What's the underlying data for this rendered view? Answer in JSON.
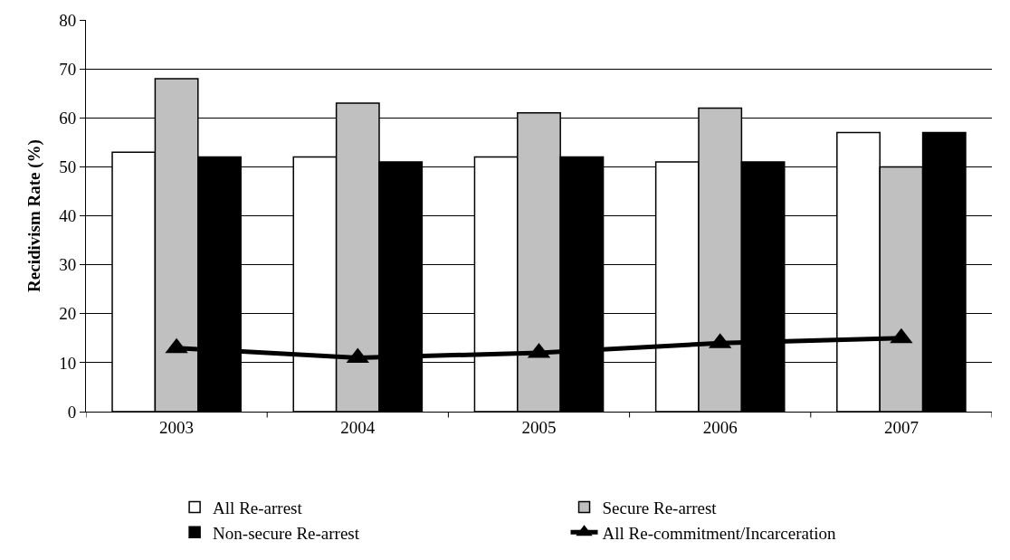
{
  "chart_data": {
    "type": "bar",
    "ylabel": "Recidivism Rate (%)",
    "categories": [
      "2003",
      "2004",
      "2005",
      "2006",
      "2007"
    ],
    "series": [
      {
        "name": "All Re-arrest",
        "color": "#ffffff",
        "values": [
          53,
          52,
          52,
          51,
          57
        ]
      },
      {
        "name": "Secure Re-arrest",
        "color": "#c0c0c0",
        "values": [
          68,
          63,
          61,
          62,
          50
        ]
      },
      {
        "name": "Non-secure Re-arrest",
        "color": "#000000",
        "values": [
          52,
          51,
          52,
          51,
          57
        ]
      },
      {
        "name": "All Re-commitment/Incarceration",
        "type": "line",
        "color": "#000000",
        "marker": "triangle",
        "line_style": "solid",
        "values": [
          13,
          11,
          12,
          14,
          15
        ]
      }
    ],
    "ylim": [
      0,
      80
    ],
    "yticks": [
      0,
      10,
      20,
      30,
      40,
      50,
      60,
      70,
      80
    ],
    "grid": "y",
    "legend": "bottom"
  }
}
